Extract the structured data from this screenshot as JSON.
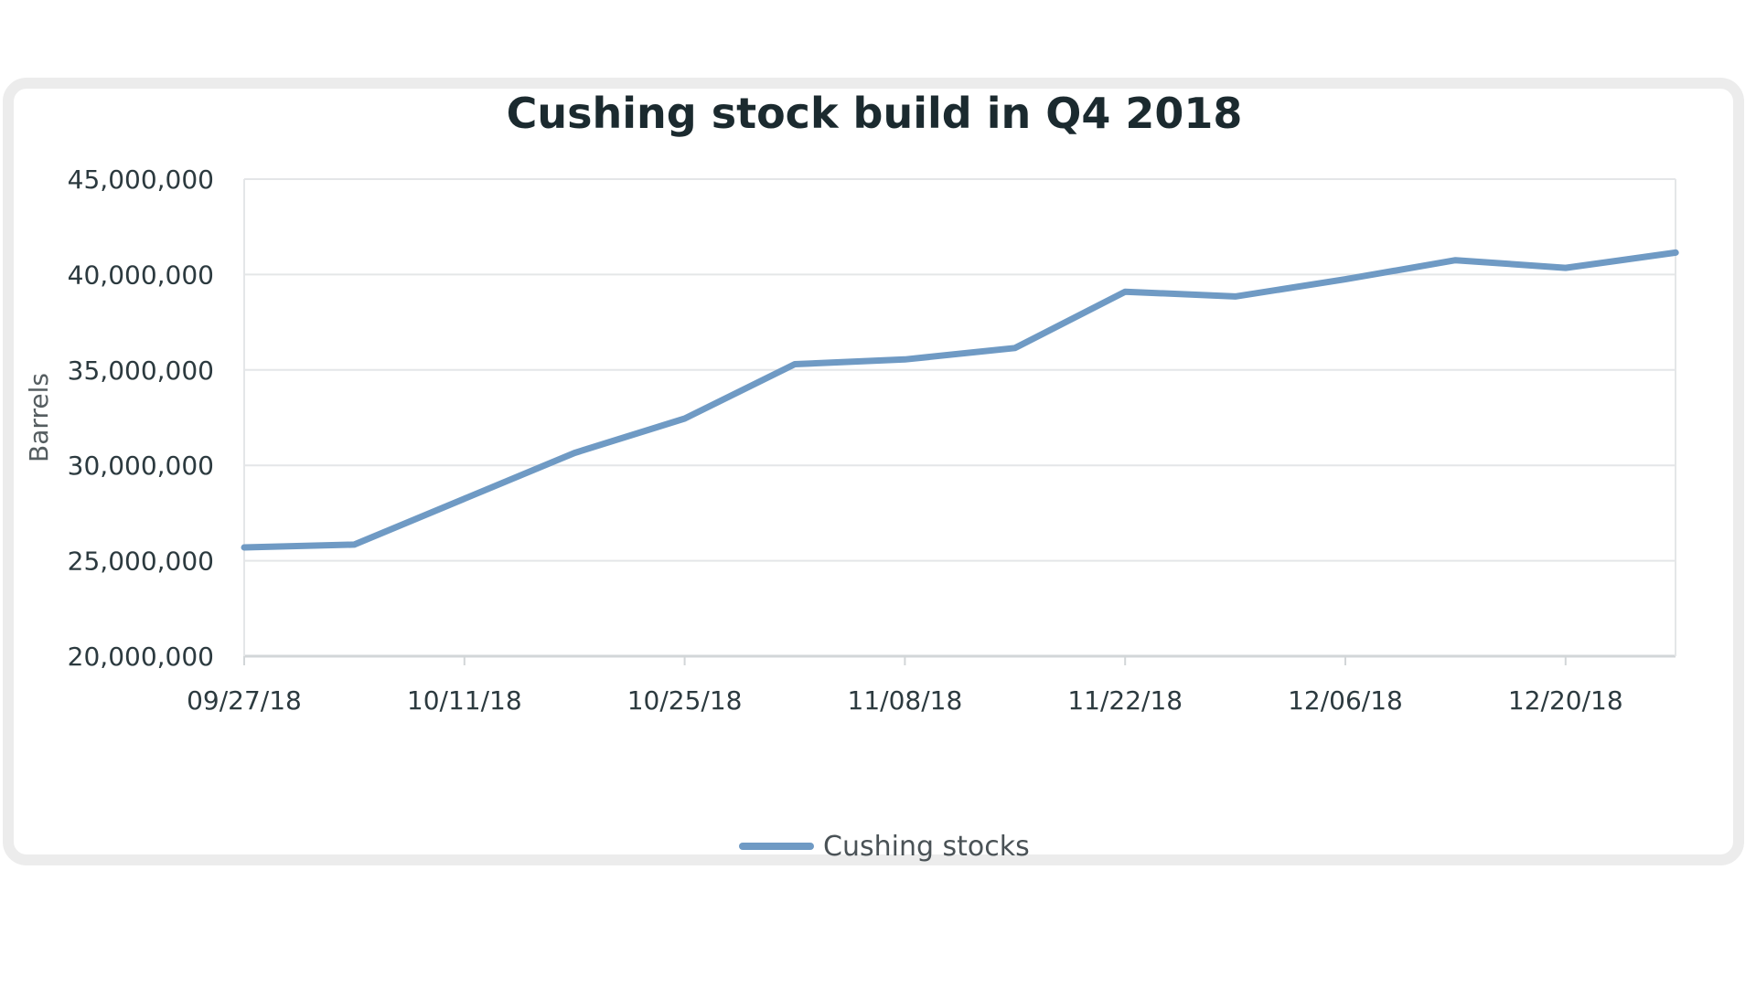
{
  "chart_data": {
    "type": "line",
    "title": "Cushing stock build in Q4 2018",
    "xlabel": "",
    "ylabel": "Barrels",
    "ylim": [
      20000000,
      45000000
    ],
    "yticks": [
      20000000,
      25000000,
      30000000,
      35000000,
      40000000,
      45000000
    ],
    "ytick_labels": [
      "20,000,000",
      "25,000,000",
      "30,000,000",
      "35,000,000",
      "40,000,000",
      "45,000,000"
    ],
    "xtick_labels": [
      "09/27/18",
      "10/11/18",
      "10/25/18",
      "11/08/18",
      "11/22/18",
      "12/06/18",
      "12/20/18"
    ],
    "x": [
      "09/27/18",
      "10/04/18",
      "10/11/18",
      "10/18/18",
      "10/25/18",
      "11/01/18",
      "11/08/18",
      "11/15/18",
      "11/22/18",
      "11/29/18",
      "12/06/18",
      "12/13/18",
      "12/20/18",
      "12/27/18"
    ],
    "series": [
      {
        "name": "Cushing stocks",
        "color": "#6f9ac4",
        "values": [
          25700000,
          25850000,
          28250000,
          30650000,
          32450000,
          35300000,
          35550000,
          36150000,
          39100000,
          38850000,
          39750000,
          40750000,
          40350000,
          41150000
        ]
      }
    ],
    "grid": true,
    "legend": "bottom-center"
  }
}
